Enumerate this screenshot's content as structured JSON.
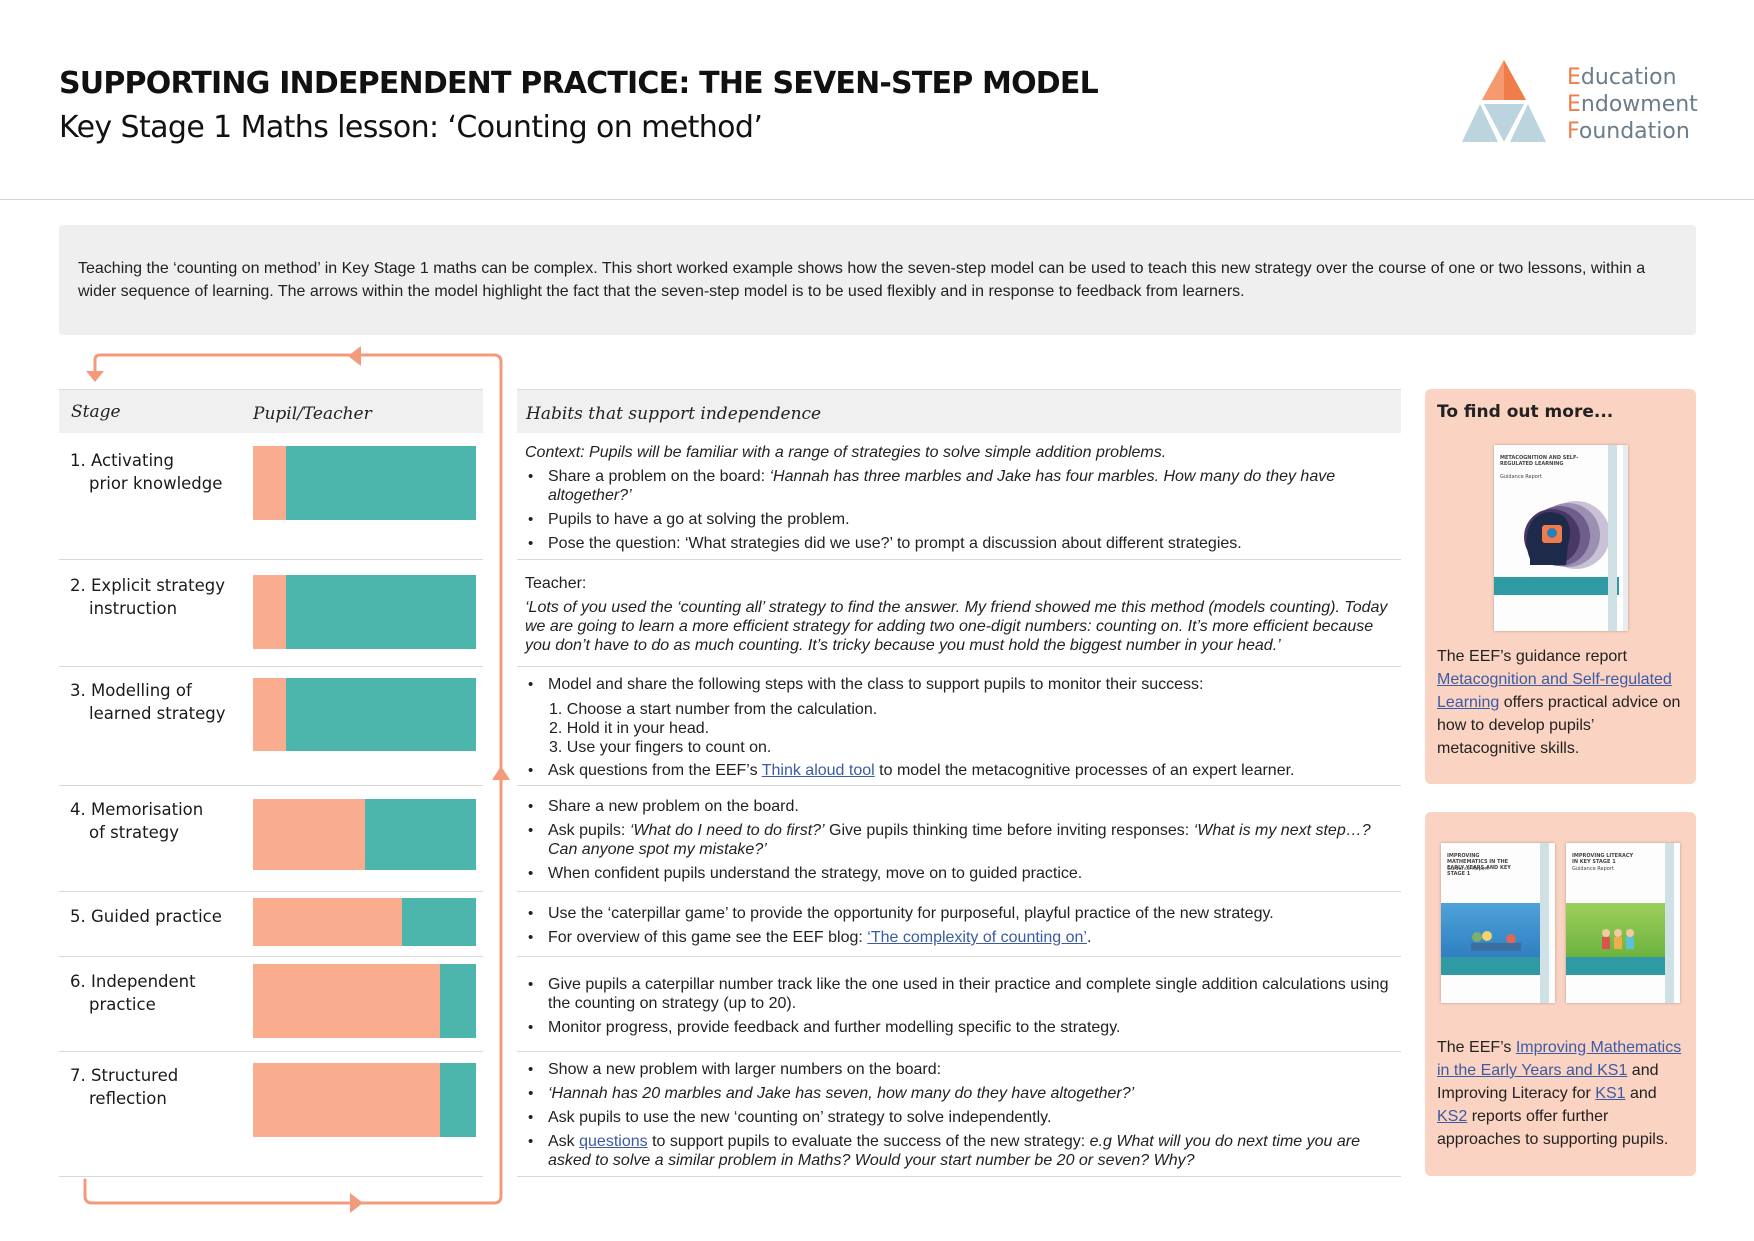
{
  "header": {
    "title": "SUPPORTING INDEPENDENT PRACTICE: THE SEVEN-STEP MODEL",
    "subtitle": "Key Stage 1 Maths lesson: ‘Counting on method’",
    "logo": {
      "line1_cap": "E",
      "line1_rest": "ducation",
      "line2_cap": "E",
      "line2_rest": "ndowment",
      "line3_cap": "F",
      "line3_rest": "oundation",
      "icon": "eef-triangle-logo-icon"
    }
  },
  "intro": "Teaching the ‘counting on method’ in Key Stage 1 maths can be complex. This short worked example shows how the seven-step model can be used to teach this new strategy over the course of one or two lessons, within a wider sequence of learning. The arrows within the model highlight the fact that the seven-step model is to be used flexibly and in response to feedback from learners.",
  "colors": {
    "pupil": "#f9ac8e",
    "teacher": "#4db6ac",
    "arrow": "#f29b7c",
    "panel": "#fbd3c2"
  },
  "table": {
    "stage_header": "Stage",
    "pupil_teacher_header": "Pupil/Teacher",
    "habits_header": "Habits that support independence",
    "stages": [
      {
        "num": "1.",
        "line1": "Activating",
        "line2": "prior knowledge",
        "pupil_share": 0.15
      },
      {
        "num": "2.",
        "line1": "Explicit strategy",
        "line2": "instruction",
        "pupil_share": 0.15
      },
      {
        "num": "3.",
        "line1": "Modelling of",
        "line2": "learned strategy",
        "pupil_share": 0.15
      },
      {
        "num": "4.",
        "line1": "Memorisation",
        "line2": "of strategy",
        "pupil_share": 0.5
      },
      {
        "num": "5.",
        "line1": "Guided practice",
        "line2": "",
        "pupil_share": 0.67
      },
      {
        "num": "6.",
        "line1": "Independent",
        "line2": "practice",
        "pupil_share": 0.84
      },
      {
        "num": "7.",
        "line1": "Structured",
        "line2": "reflection",
        "pupil_share": 0.84
      }
    ]
  },
  "habits": {
    "s1": {
      "context": "Context: Pupils will be familiar with a range of strategies to solve simple addition problems.",
      "b1_pre": "Share a problem on the board: ",
      "b1_it": "‘Hannah has three marbles and Jake has four marbles.  How many do they have altogether?’",
      "b2": "Pupils to have a go at solving the problem.",
      "b3": "Pose the question: ‘What strategies did we use?’ to prompt a discussion about different strategies."
    },
    "s2": {
      "label": "Teacher:",
      "quote": "‘Lots of you used the ‘counting all’ strategy to find the answer. My friend showed me this method (models counting). Today we are going to learn a more efficient strategy for adding two one-digit numbers: counting on. It’s more efficient because you don’t have to do as much counting. It’s tricky because you must hold the biggest number in your head.’"
    },
    "s3": {
      "b1": "Model and share the following steps with the class to support pupils to monitor their success:",
      "steps": [
        "1. Choose a start number from the calculation.",
        "2. Hold it in your head.",
        "3. Use your fingers to count on."
      ],
      "b2_pre": "Ask questions from the EEF’s ",
      "b2_link": "Think aloud tool",
      "b2_post": " to model the metacognitive processes of an expert learner."
    },
    "s4": {
      "b1": "Share a new problem on the board.",
      "b2_pre": "Ask pupils: ",
      "b2_it1": "‘What do I need to do first?’",
      "b2_mid": " Give pupils thinking time before inviting responses: ",
      "b2_it2": "‘What is my next step…? Can anyone spot my mistake?’",
      "b3": "When confident pupils understand the strategy, move on to guided practice."
    },
    "s5": {
      "b1": "Use the ‘caterpillar game’ to provide the opportunity for purposeful, playful practice of the new strategy.",
      "b2_pre": "For overview of this game see the EEF blog: ",
      "b2_link": "‘The complexity of counting on’",
      "b2_post": "."
    },
    "s6": {
      "b1": "Give pupils a caterpillar number track like the one used in their practice and complete single addition calculations using the counting on strategy (up to 20).",
      "b2": "Monitor progress, provide feedback and further modelling specific to the strategy."
    },
    "s7": {
      "b1": "Show a new problem with larger numbers on the board:",
      "b2": " ‘Hannah has 20 marbles and Jake has seven, how many do they have altogether?’",
      "b3": "Ask pupils to use the new ‘counting on’ strategy to solve independently.",
      "b4_pre": "Ask ",
      "b4_link": "questions",
      "b4_mid": " to support pupils to evaluate the success of the new strategy: ",
      "b4_it": "e.g  What will you do next time you are asked to solve a similar problem in Maths? Would your start number be 20 or seven? Why?"
    }
  },
  "sidebar": {
    "title": "To find out more...",
    "panel1": {
      "book_title": "METACOGNITION AND SELF-REGULATED LEARNING",
      "book_sub": "Guidance Report",
      "pre": "The EEF’s guidance report ",
      "link": "Metacognition and Self-regulated Learning",
      "post": " offers practical advice on how to develop pupils’ metacognitive skills."
    },
    "panel2": {
      "book1_title": "IMPROVING MATHEMATICS IN THE EARLY YEARS AND KEY STAGE 1",
      "book1_sub": "Guidance Report",
      "book2_title": "IMPROVING LITERACY IN KEY STAGE 1",
      "book2_sub": "Guidance Report",
      "pre": "The EEF’s ",
      "link1": "Improving Mathematics in the Early Years and KS1",
      "mid1": " and Improving Literacy for ",
      "link2": "KS1",
      "mid2": " and ",
      "link3": "KS2",
      "post": " reports offer further approaches to supporting pupils."
    }
  }
}
